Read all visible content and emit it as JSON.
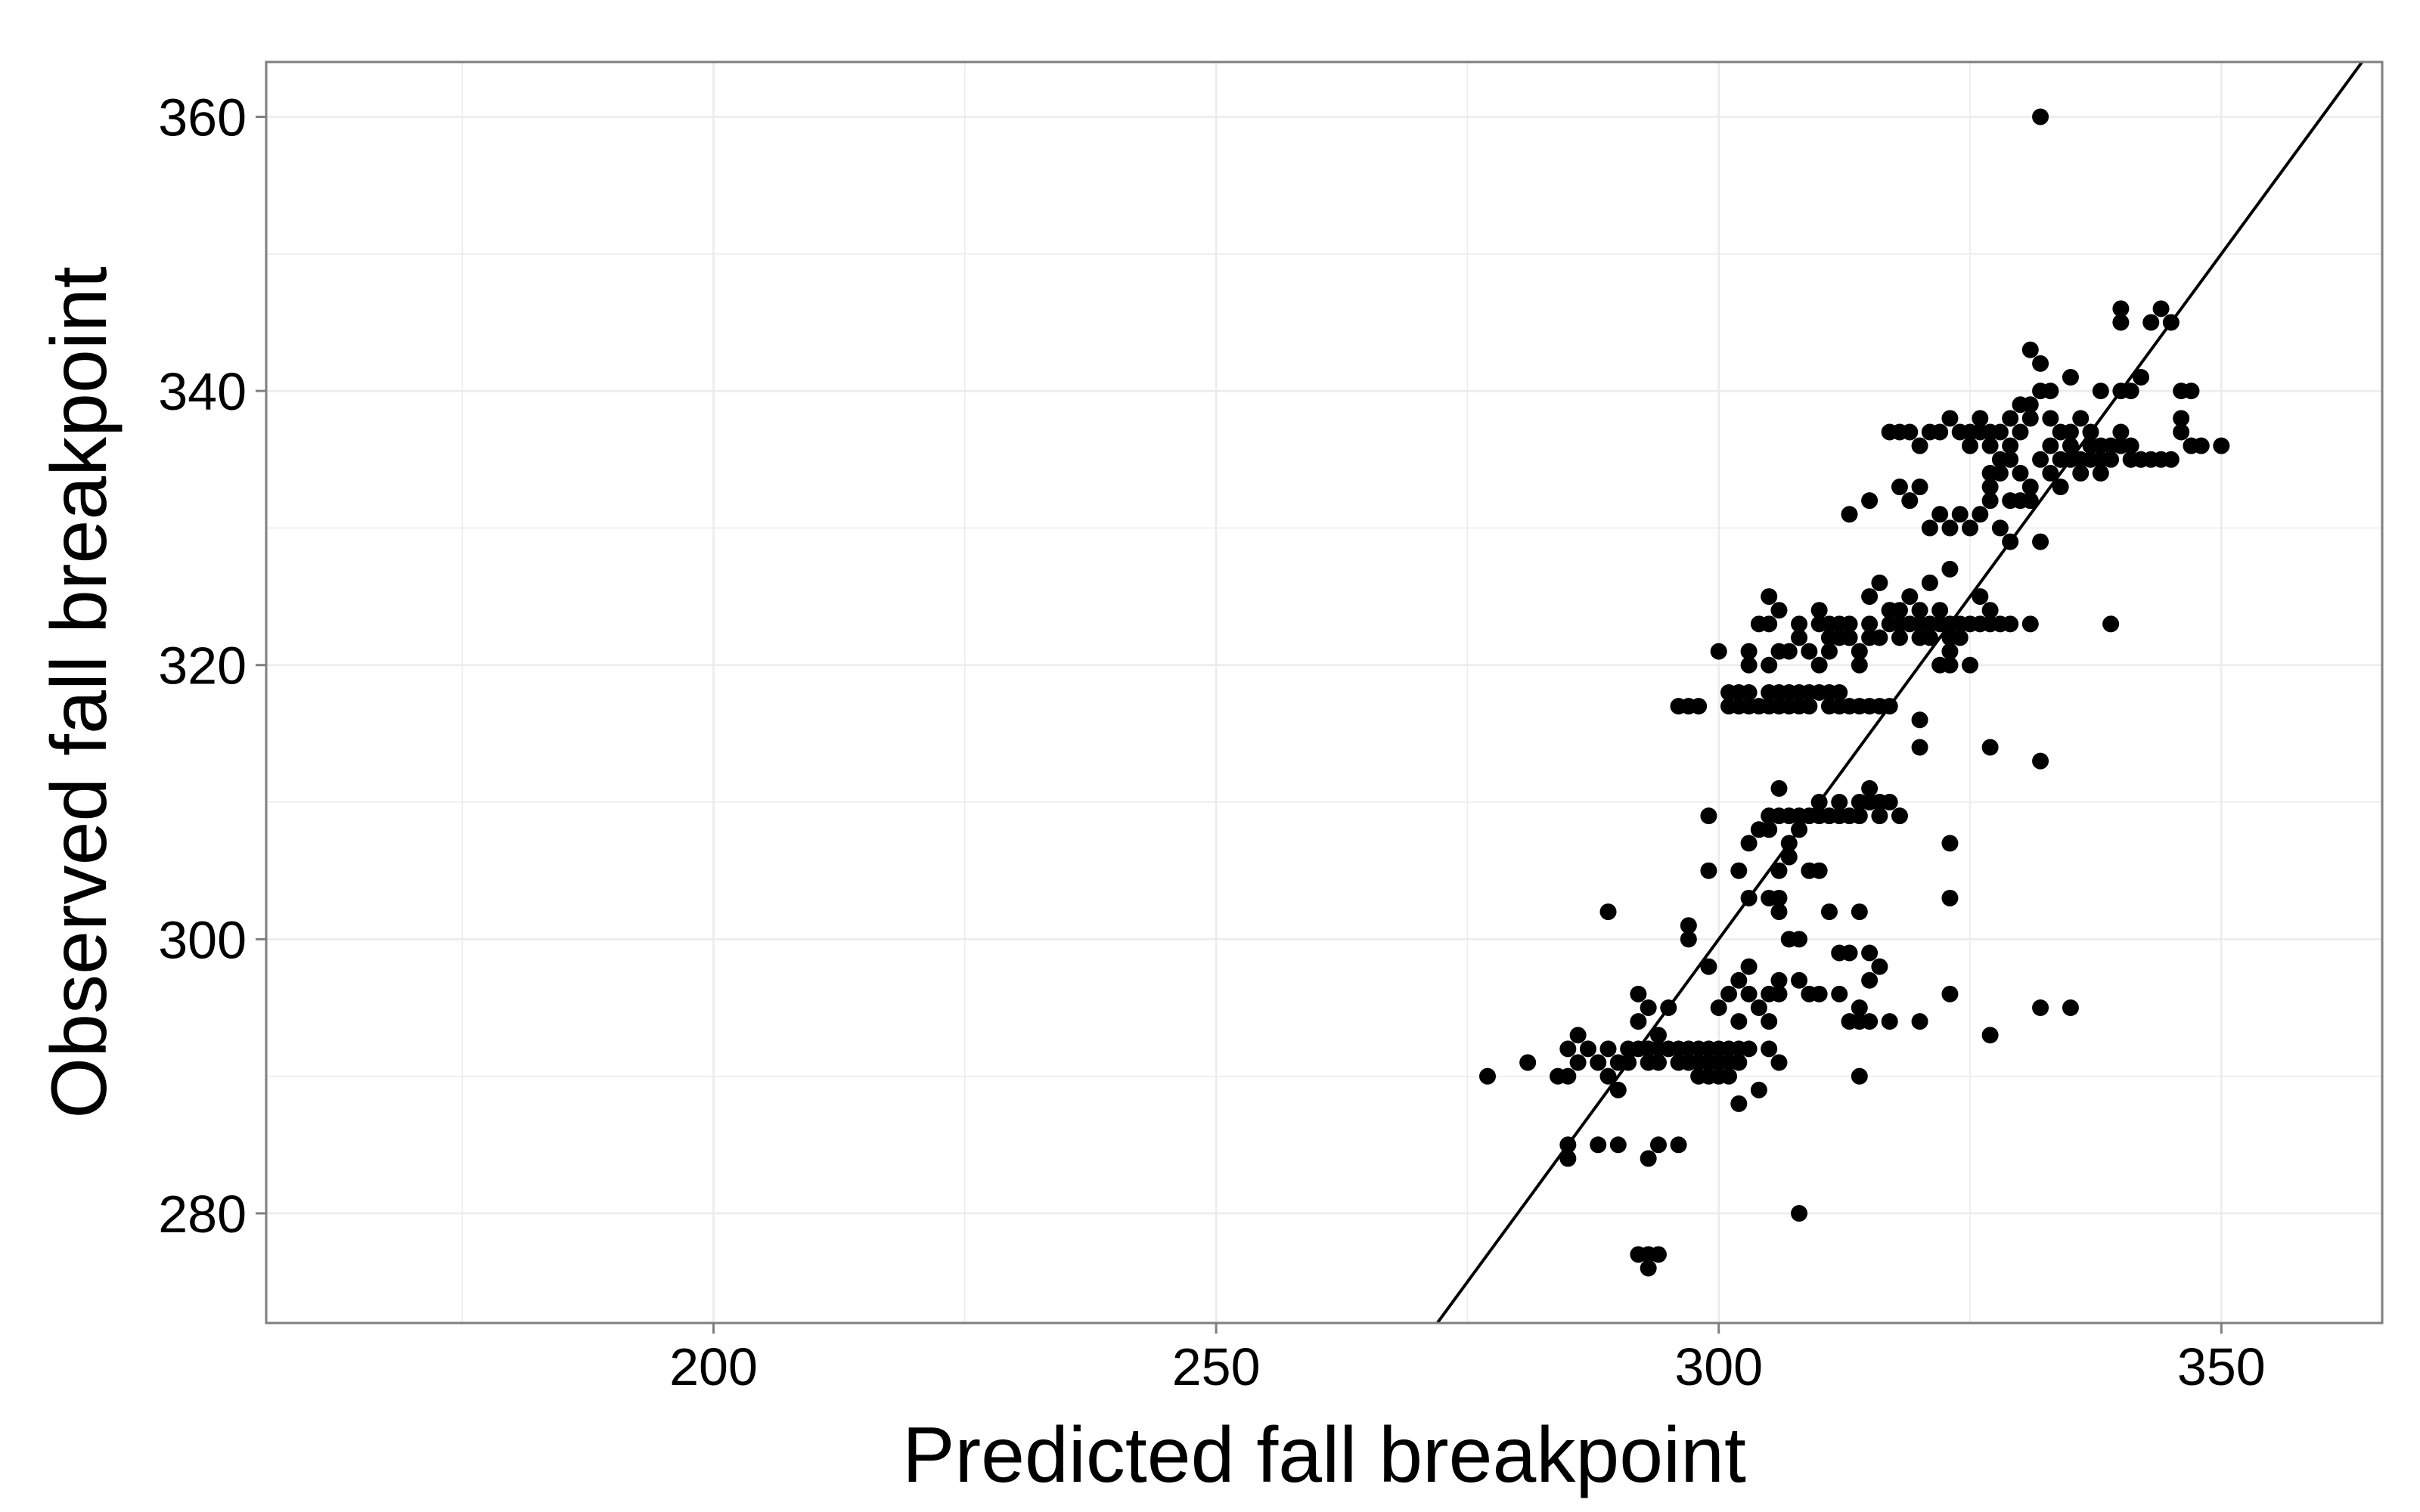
{
  "chart_data": {
    "type": "scatter",
    "title": "",
    "xlabel": "Predicted fall breakpoint",
    "ylabel": "Observed fall breakpoint",
    "xlim": [
      155.5,
      366
    ],
    "ylim": [
      272,
      364
    ],
    "x_ticks": [
      200,
      250,
      300,
      350
    ],
    "y_ticks": [
      280,
      300,
      320,
      340,
      360
    ],
    "x_tick_labels": [
      "200",
      "250",
      "300",
      "350"
    ],
    "y_tick_labels": [
      "280",
      "300",
      "320",
      "340",
      "360"
    ],
    "grid": true,
    "legend": "none",
    "colors": {
      "points": "#000000",
      "line": "#000000",
      "grid": "#ebebeb",
      "panel_border": "#7f7f7f",
      "background": "#ffffff"
    },
    "reference_line": {
      "slope": 1,
      "intercept": 0,
      "label": ""
    },
    "points": [
      [
        277,
        290
      ],
      [
        281,
        291
      ],
      [
        284,
        290
      ],
      [
        285,
        290
      ],
      [
        285,
        292
      ],
      [
        286,
        293
      ],
      [
        286,
        291
      ],
      [
        287,
        292
      ],
      [
        288,
        291
      ],
      [
        289,
        290
      ],
      [
        289,
        292
      ],
      [
        290,
        289
      ],
      [
        290,
        291
      ],
      [
        291,
        291
      ],
      [
        291,
        292
      ],
      [
        292,
        292
      ],
      [
        292,
        294
      ],
      [
        292,
        296
      ],
      [
        293,
        291
      ],
      [
        293,
        295
      ],
      [
        293,
        292
      ],
      [
        294,
        291
      ],
      [
        294,
        292
      ],
      [
        294,
        293
      ],
      [
        295,
        292
      ],
      [
        295,
        295
      ],
      [
        296,
        291
      ],
      [
        296,
        292
      ],
      [
        297,
        291
      ],
      [
        297,
        292
      ],
      [
        298,
        291
      ],
      [
        298,
        290
      ],
      [
        298,
        292
      ],
      [
        299,
        291
      ],
      [
        299,
        290
      ],
      [
        299,
        292
      ],
      [
        300,
        291
      ],
      [
        300,
        292
      ],
      [
        300,
        290
      ],
      [
        301,
        291
      ],
      [
        301,
        292
      ],
      [
        301,
        290
      ],
      [
        302,
        292
      ],
      [
        302,
        291
      ],
      [
        303,
        292
      ],
      [
        289,
        302
      ],
      [
        285,
        285
      ],
      [
        285,
        284
      ],
      [
        288,
        285
      ],
      [
        290,
        285
      ],
      [
        293,
        284
      ],
      [
        294,
        285
      ],
      [
        296,
        285
      ],
      [
        292,
        277
      ],
      [
        293,
        277
      ],
      [
        293,
        276
      ],
      [
        294,
        277
      ],
      [
        302,
        288
      ],
      [
        304,
        289
      ],
      [
        308,
        280
      ],
      [
        306,
        291
      ],
      [
        297,
        300
      ],
      [
        297,
        301
      ],
      [
        299,
        298
      ],
      [
        300,
        295
      ],
      [
        301,
        296
      ],
      [
        302,
        297
      ],
      [
        302,
        294
      ],
      [
        303,
        296
      ],
      [
        303,
        298
      ],
      [
        304,
        295
      ],
      [
        305,
        296
      ],
      [
        305,
        294
      ],
      [
        306,
        296
      ],
      [
        305,
        292
      ],
      [
        306,
        297
      ],
      [
        299,
        305
      ],
      [
        302,
        305
      ],
      [
        303,
        303
      ],
      [
        305,
        303
      ],
      [
        306,
        302
      ],
      [
        306,
        305
      ],
      [
        306,
        303
      ],
      [
        307,
        300
      ],
      [
        307,
        306
      ],
      [
        308,
        300
      ],
      [
        308,
        297
      ],
      [
        309,
        296
      ],
      [
        309,
        305
      ],
      [
        310,
        305
      ],
      [
        310,
        296
      ],
      [
        311,
        302
      ],
      [
        312,
        299
      ],
      [
        312,
        296
      ],
      [
        313,
        299
      ],
      [
        313,
        294
      ],
      [
        314,
        294
      ],
      [
        314,
        295
      ],
      [
        314,
        302
      ],
      [
        314,
        290
      ],
      [
        315,
        297
      ],
      [
        315,
        294
      ],
      [
        315,
        299
      ],
      [
        316,
        298
      ],
      [
        317,
        294
      ],
      [
        320,
        294
      ],
      [
        323,
        296
      ],
      [
        323,
        303
      ],
      [
        323,
        307
      ],
      [
        327,
        293
      ],
      [
        332,
        295
      ],
      [
        335,
        295
      ],
      [
        299,
        309
      ],
      [
        303,
        307
      ],
      [
        304,
        308
      ],
      [
        305,
        309
      ],
      [
        305,
        308
      ],
      [
        306,
        311
      ],
      [
        306,
        309
      ],
      [
        307,
        309
      ],
      [
        307,
        307
      ],
      [
        308,
        308
      ],
      [
        308,
        309
      ],
      [
        309,
        309
      ],
      [
        310,
        309
      ],
      [
        310,
        310
      ],
      [
        311,
        309
      ],
      [
        312,
        309
      ],
      [
        312,
        310
      ],
      [
        313,
        309
      ],
      [
        314,
        309
      ],
      [
        314,
        310
      ],
      [
        315,
        310
      ],
      [
        315,
        311
      ],
      [
        316,
        309
      ],
      [
        316,
        310
      ],
      [
        317,
        310
      ],
      [
        318,
        309
      ],
      [
        320,
        314
      ],
      [
        320,
        316
      ],
      [
        327,
        314
      ],
      [
        332,
        313
      ],
      [
        296,
        317
      ],
      [
        297,
        317
      ],
      [
        298,
        317
      ],
      [
        300,
        321
      ],
      [
        301,
        318
      ],
      [
        301,
        317
      ],
      [
        302,
        317
      ],
      [
        302,
        318
      ],
      [
        303,
        318
      ],
      [
        303,
        317
      ],
      [
        304,
        317
      ],
      [
        305,
        318
      ],
      [
        305,
        317
      ],
      [
        306,
        318
      ],
      [
        306,
        317
      ],
      [
        307,
        317
      ],
      [
        307,
        318
      ],
      [
        308,
        318
      ],
      [
        308,
        317
      ],
      [
        309,
        318
      ],
      [
        309,
        317
      ],
      [
        310,
        318
      ],
      [
        311,
        318
      ],
      [
        311,
        317
      ],
      [
        312,
        318
      ],
      [
        312,
        317
      ],
      [
        313,
        317
      ],
      [
        314,
        317
      ],
      [
        315,
        317
      ],
      [
        316,
        317
      ],
      [
        317,
        317
      ],
      [
        303,
        320
      ],
      [
        303,
        321
      ],
      [
        304,
        323
      ],
      [
        305,
        320
      ],
      [
        305,
        323
      ],
      [
        306,
        321
      ],
      [
        307,
        321
      ],
      [
        308,
        322
      ],
      [
        308,
        323
      ],
      [
        309,
        321
      ],
      [
        310,
        320
      ],
      [
        310,
        323
      ],
      [
        311,
        322
      ],
      [
        311,
        321
      ],
      [
        312,
        323
      ],
      [
        313,
        322
      ],
      [
        313,
        323
      ],
      [
        314,
        321
      ],
      [
        314,
        320
      ],
      [
        315,
        322
      ],
      [
        315,
        323
      ],
      [
        316,
        322
      ],
      [
        317,
        323
      ],
      [
        317,
        324
      ],
      [
        318,
        322
      ],
      [
        318,
        323
      ],
      [
        319,
        323
      ],
      [
        320,
        322
      ],
      [
        320,
        323
      ],
      [
        321,
        323
      ],
      [
        321,
        322
      ],
      [
        322,
        323
      ],
      [
        323,
        322
      ],
      [
        323,
        323
      ],
      [
        324,
        323
      ],
      [
        325,
        323
      ],
      [
        326,
        323
      ],
      [
        327,
        323
      ],
      [
        328,
        323
      ],
      [
        329,
        323
      ],
      [
        331,
        323
      ],
      [
        310,
        324
      ],
      [
        311,
        323
      ],
      [
        312,
        322
      ],
      [
        313,
        322
      ],
      [
        315,
        325
      ],
      [
        316,
        326
      ],
      [
        317,
        324
      ],
      [
        318,
        324
      ],
      [
        319,
        325
      ],
      [
        320,
        324
      ],
      [
        322,
        324
      ],
      [
        323,
        321
      ],
      [
        324,
        322
      ],
      [
        322,
        320
      ],
      [
        323,
        320
      ],
      [
        325,
        320
      ],
      [
        321,
        326
      ],
      [
        323,
        327
      ],
      [
        326,
        325
      ],
      [
        327,
        324
      ],
      [
        339,
        323
      ],
      [
        305,
        325
      ],
      [
        306,
        324
      ],
      [
        313,
        331
      ],
      [
        315,
        332
      ],
      [
        318,
        333
      ],
      [
        319,
        332
      ],
      [
        320,
        333
      ],
      [
        321,
        330
      ],
      [
        322,
        331
      ],
      [
        323,
        330
      ],
      [
        324,
        331
      ],
      [
        325,
        330
      ],
      [
        326,
        331
      ],
      [
        327,
        332
      ],
      [
        328,
        330
      ],
      [
        329,
        332
      ],
      [
        329,
        329
      ],
      [
        330,
        332
      ],
      [
        331,
        332
      ],
      [
        332,
        329
      ],
      [
        317,
        337
      ],
      [
        318,
        337
      ],
      [
        319,
        337
      ],
      [
        320,
        336
      ],
      [
        321,
        337
      ],
      [
        322,
        337
      ],
      [
        323,
        338
      ],
      [
        324,
        337
      ],
      [
        325,
        337
      ],
      [
        325,
        336
      ],
      [
        326,
        337
      ],
      [
        326,
        338
      ],
      [
        327,
        337
      ],
      [
        327,
        336
      ],
      [
        328,
        335
      ],
      [
        328,
        337
      ],
      [
        329,
        338
      ],
      [
        329,
        336
      ],
      [
        330,
        339
      ],
      [
        330,
        337
      ],
      [
        331,
        338
      ],
      [
        331,
        339
      ],
      [
        331,
        343
      ],
      [
        332,
        342
      ],
      [
        332,
        340
      ],
      [
        333,
        340
      ],
      [
        333,
        338
      ],
      [
        333,
        336
      ],
      [
        334,
        337
      ],
      [
        334,
        335
      ],
      [
        335,
        336
      ],
      [
        335,
        337
      ],
      [
        336,
        338
      ],
      [
        336,
        335
      ],
      [
        337,
        336
      ],
      [
        337,
        337
      ],
      [
        338,
        335
      ],
      [
        338,
        336
      ],
      [
        339,
        336
      ],
      [
        339,
        335
      ],
      [
        340,
        336
      ],
      [
        340,
        337
      ],
      [
        341,
        335
      ],
      [
        341,
        336
      ],
      [
        342,
        335
      ],
      [
        343,
        335
      ],
      [
        344,
        335
      ],
      [
        345,
        335
      ],
      [
        346,
        338
      ],
      [
        346,
        337
      ],
      [
        347,
        336
      ],
      [
        348,
        336
      ],
      [
        350,
        336
      ],
      [
        327,
        334
      ],
      [
        327,
        333
      ],
      [
        328,
        334
      ],
      [
        329,
        335
      ],
      [
        330,
        334
      ],
      [
        331,
        333
      ],
      [
        332,
        335
      ],
      [
        333,
        334
      ],
      [
        334,
        333
      ],
      [
        335,
        335
      ],
      [
        336,
        334
      ],
      [
        337,
        335
      ],
      [
        338,
        334
      ],
      [
        335,
        341
      ],
      [
        338,
        340
      ],
      [
        340,
        340
      ],
      [
        341,
        340
      ],
      [
        342,
        341
      ],
      [
        343,
        345
      ],
      [
        344,
        346
      ],
      [
        345,
        345
      ],
      [
        346,
        340
      ],
      [
        347,
        340
      ],
      [
        340,
        346
      ],
      [
        340,
        345
      ],
      [
        332,
        360
      ]
    ]
  }
}
